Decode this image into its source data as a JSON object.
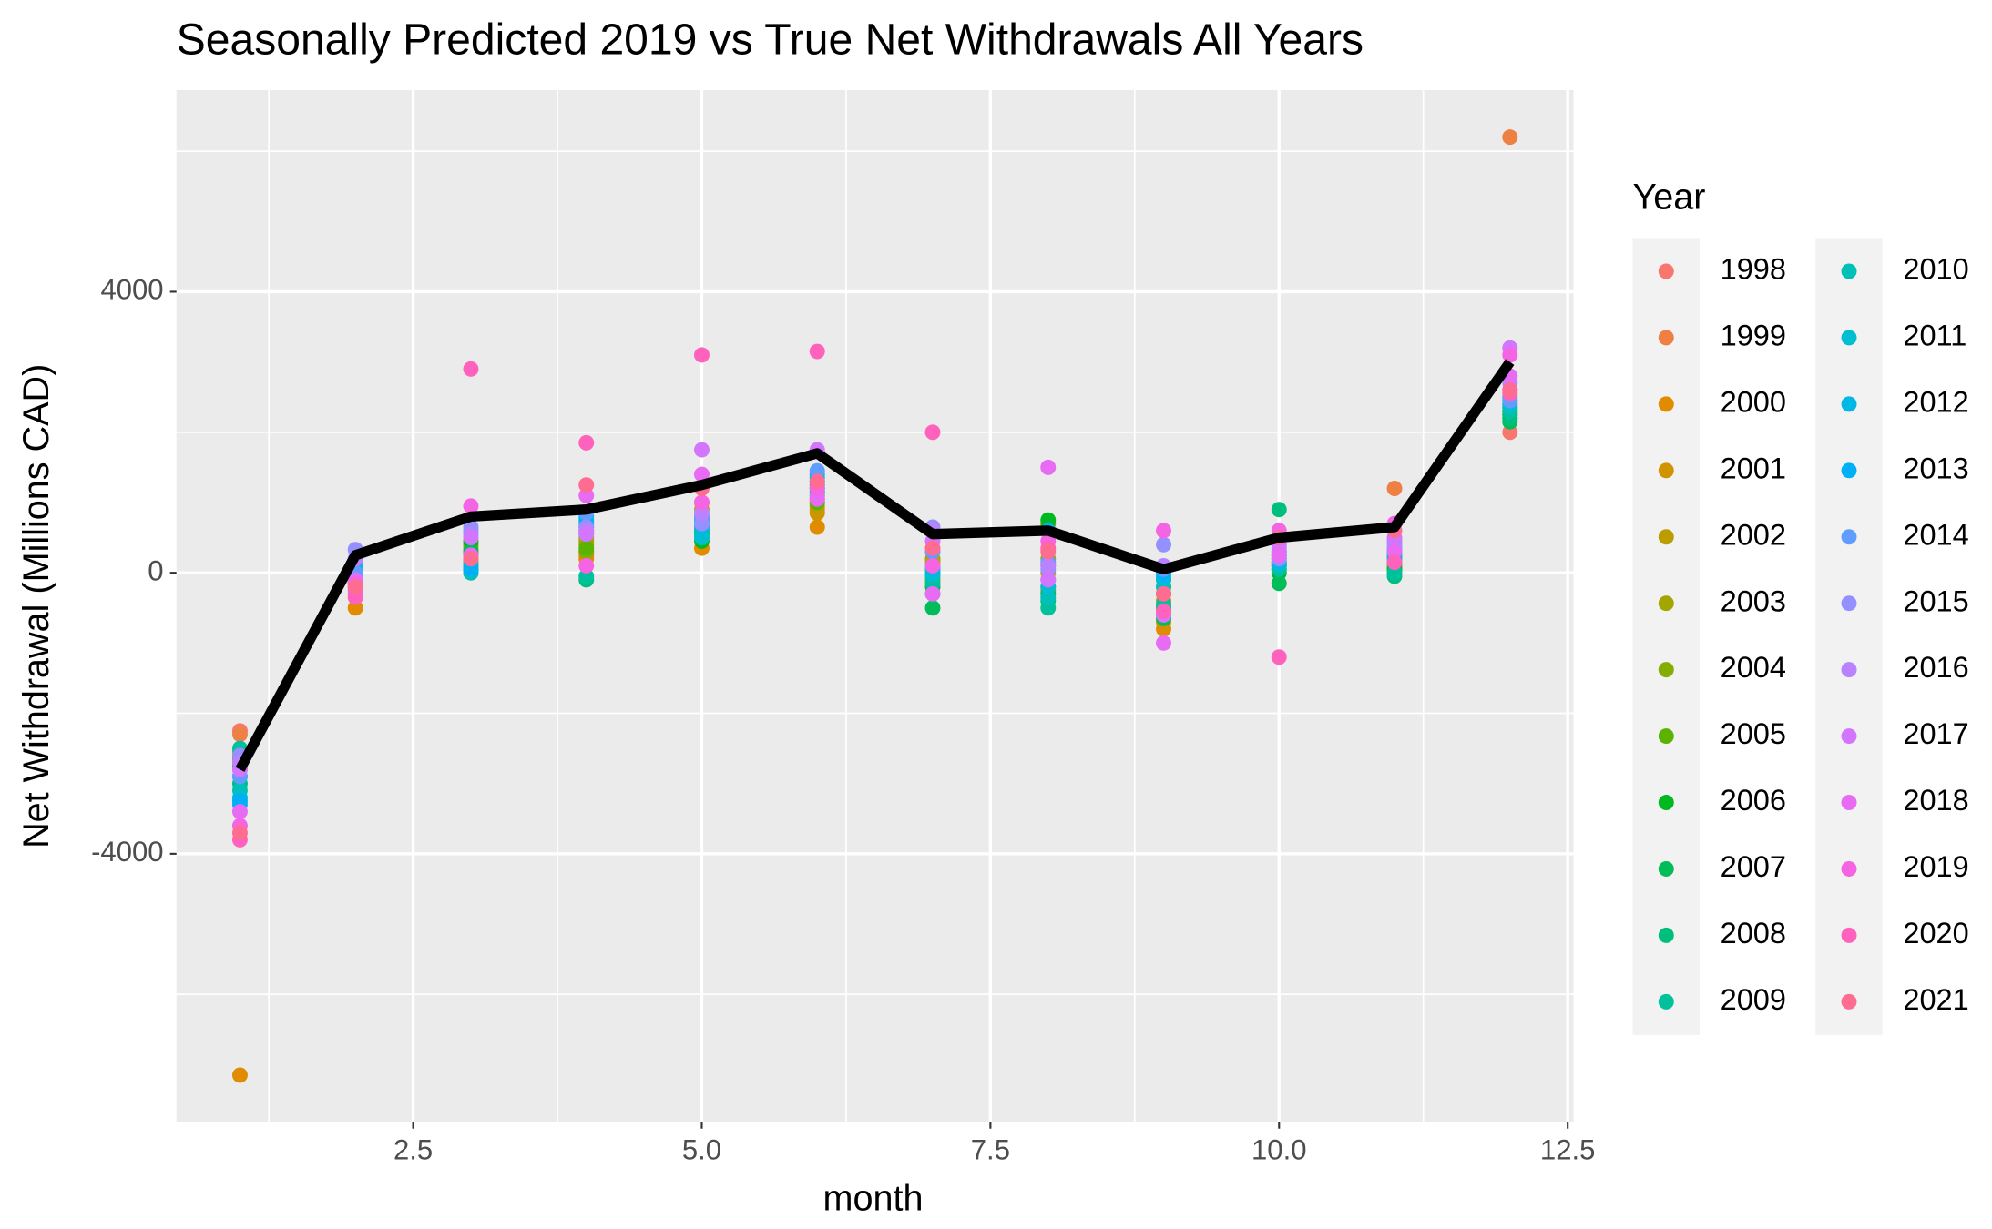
{
  "chart_data": {
    "type": "scatter",
    "title": "Seasonally Predicted 2019 vs True Net Withdrawals All Years",
    "x_label": "month",
    "y_label": "Net Withdrawal (Millions CAD)",
    "legend_title": "Year",
    "x": [
      1,
      2,
      3,
      4,
      5,
      6,
      7,
      8,
      9,
      10,
      11,
      12
    ],
    "xlim": [
      0.45,
      12.55
    ],
    "ylim": [
      -7820,
      6870
    ],
    "xticks": [
      {
        "value": 2.5,
        "label": "2.5"
      },
      {
        "value": 5,
        "label": "5.0"
      },
      {
        "value": 7.5,
        "label": "7.5"
      },
      {
        "value": 10,
        "label": "10.0"
      },
      {
        "value": 12.5,
        "label": "12.5"
      }
    ],
    "yticks": [
      -4000,
      0,
      4000
    ],
    "grid": true,
    "legend": "right",
    "series": [
      {
        "name": "1998",
        "color": "#F8766D",
        "values": [
          -2250,
          -150,
          100,
          300,
          600,
          900,
          200,
          -200,
          -500,
          100,
          200,
          2000
        ]
      },
      {
        "name": "1999",
        "color": "#EE8044",
        "values": [
          -2300,
          -300,
          50,
          250,
          700,
          1000,
          100,
          -300,
          -600,
          150,
          1200,
          6200
        ]
      },
      {
        "name": "2000",
        "color": "#E08B00",
        "values": [
          -7150,
          -500,
          0,
          200,
          350,
          650,
          50,
          -250,
          -800,
          200,
          300,
          2300
        ]
      },
      {
        "name": "2001",
        "color": "#CF9400",
        "values": [
          -2600,
          -200,
          200,
          400,
          1000,
          850,
          150,
          -100,
          -700,
          250,
          250,
          2400
        ]
      },
      {
        "name": "2002",
        "color": "#BB9D00",
        "values": [
          -2700,
          -100,
          300,
          500,
          900,
          950,
          200,
          0,
          -400,
          300,
          100,
          2350
        ]
      },
      {
        "name": "2003",
        "color": "#A3A500",
        "values": [
          -2550,
          0,
          250,
          450,
          800,
          1100,
          100,
          200,
          -300,
          150,
          150,
          2250
        ]
      },
      {
        "name": "2004",
        "color": "#85AD00",
        "values": [
          -2650,
          -50,
          350,
          300,
          750,
          1050,
          0,
          600,
          -200,
          100,
          50,
          2300
        ]
      },
      {
        "name": "2005",
        "color": "#5BB300",
        "values": [
          -2800,
          50,
          400,
          350,
          500,
          1000,
          -100,
          700,
          -100,
          50,
          100,
          2200
        ]
      },
      {
        "name": "2006",
        "color": "#00B81F",
        "values": [
          -2900,
          -100,
          450,
          600,
          450,
          1150,
          -200,
          750,
          -300,
          0,
          50,
          2250
        ]
      },
      {
        "name": "2007",
        "color": "#00BC59",
        "values": [
          -2750,
          -150,
          300,
          550,
          550,
          1200,
          -500,
          -300,
          -650,
          -150,
          0,
          2150
        ]
      },
      {
        "name": "2008",
        "color": "#00BF7D",
        "values": [
          -3000,
          -50,
          150,
          -100,
          650,
          1250,
          -300,
          -400,
          -500,
          900,
          -50,
          2200
        ]
      },
      {
        "name": "2009",
        "color": "#00C19C",
        "values": [
          -2500,
          0,
          100,
          -50,
          600,
          1300,
          -150,
          -500,
          -450,
          50,
          0,
          2300
        ]
      },
      {
        "name": "2010",
        "color": "#00C0B8",
        "values": [
          -3100,
          -100,
          0,
          650,
          700,
          1200,
          -50,
          -350,
          -200,
          100,
          150,
          2350
        ]
      },
      {
        "name": "2011",
        "color": "#00BDD0",
        "values": [
          -3200,
          50,
          50,
          750,
          500,
          1350,
          0,
          -200,
          -100,
          200,
          200,
          2400
        ]
      },
      {
        "name": "2012",
        "color": "#00B8E5",
        "values": [
          -3300,
          100,
          100,
          800,
          650,
          1400,
          50,
          100,
          -50,
          150,
          300,
          2450
        ]
      },
      {
        "name": "2013",
        "color": "#00B0F6",
        "values": [
          -3250,
          -50,
          50,
          700,
          750,
          1300,
          100,
          600,
          0,
          250,
          250,
          2500
        ]
      },
      {
        "name": "2014",
        "color": "#619CFF",
        "values": [
          -2900,
          0,
          600,
          850,
          800,
          1450,
          300,
          150,
          50,
          300,
          350,
          2450
        ]
      },
      {
        "name": "2015",
        "color": "#9590FF",
        "values": [
          -2600,
          330,
          650,
          650,
          700,
          1100,
          650,
          50,
          400,
          200,
          450,
          2600
        ]
      },
      {
        "name": "2016",
        "color": "#B983FF",
        "values": [
          -2700,
          200,
          550,
          600,
          850,
          1050,
          600,
          100,
          100,
          350,
          400,
          2700
        ]
      },
      {
        "name": "2017",
        "color": "#D376FF",
        "values": [
          -2800,
          -100,
          500,
          550,
          1750,
          1750,
          450,
          -100,
          -600,
          400,
          500,
          3200
        ]
      },
      {
        "name": "2018",
        "color": "#E76BF3",
        "values": [
          -3400,
          -250,
          250,
          1100,
          1400,
          1050,
          -300,
          1500,
          -1000,
          250,
          300,
          2800
        ]
      },
      {
        "name": "2019",
        "color": "#F564E3",
        "values": [
          -3600,
          -150,
          950,
          100,
          1000,
          1200,
          100,
          450,
          600,
          600,
          700,
          3100
        ]
      },
      {
        "name": "2020",
        "color": "#FF62BC",
        "values": [
          -3800,
          -350,
          2900,
          1850,
          3100,
          3150,
          2000,
          350,
          -550,
          -1200,
          150,
          2550
        ]
      },
      {
        "name": "2021",
        "color": "#FF6C91",
        "values": [
          -3700,
          -200,
          200,
          1250,
          1200,
          1300,
          350,
          300,
          -300,
          500,
          600,
          2600
        ]
      }
    ],
    "prediction": {
      "color": "#000000",
      "values": [
        -2800,
        250,
        800,
        900,
        1250,
        1700,
        550,
        600,
        50,
        500,
        650,
        3000
      ]
    }
  }
}
